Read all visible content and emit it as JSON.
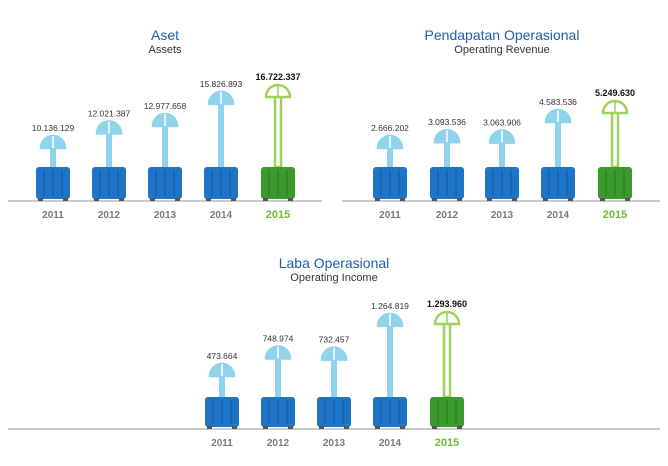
{
  "chart_data": [
    {
      "type": "bar",
      "title": "Aset",
      "subtitle": "Assets",
      "categories": [
        "2011",
        "2012",
        "2013",
        "2014",
        "2015"
      ],
      "values": [
        10136129,
        12021387,
        12977658,
        15826893,
        16722337
      ],
      "labels": [
        "10.136.129",
        "12.021.387",
        "12.977.658",
        "15.826.893",
        "16.722.337"
      ],
      "highlight": "2015"
    },
    {
      "type": "bar",
      "title": "Pendapatan Operasional",
      "subtitle": "Operating Revenue",
      "categories": [
        "2011",
        "2012",
        "2013",
        "2014",
        "2015"
      ],
      "values": [
        2666202,
        3093536,
        3063906,
        4583536,
        5249630
      ],
      "labels": [
        "2.666.202",
        "3.093.536",
        "3.063.906",
        "4.583.536",
        "5.249.630"
      ],
      "highlight": "2015"
    },
    {
      "type": "bar",
      "title": "Laba Operasional",
      "subtitle": "Operating Income",
      "categories": [
        "2011",
        "2012",
        "2013",
        "2014",
        "2015"
      ],
      "values": [
        473664,
        748974,
        732457,
        1264819,
        1293960
      ],
      "labels": [
        "473.664",
        "748.974",
        "732.457",
        "1.264.819",
        "1.293.960"
      ],
      "highlight": "2015"
    }
  ],
  "colors": {
    "title": "#1f5fa8",
    "suitcase_blue": "#1e74c6",
    "suitcase_green": "#3a9a2e",
    "handle_blue": "#8fd3ec",
    "handle_green": "#9ed35a",
    "highlight_year": "#6dbb2f",
    "baseline": "#9a9a9a"
  }
}
